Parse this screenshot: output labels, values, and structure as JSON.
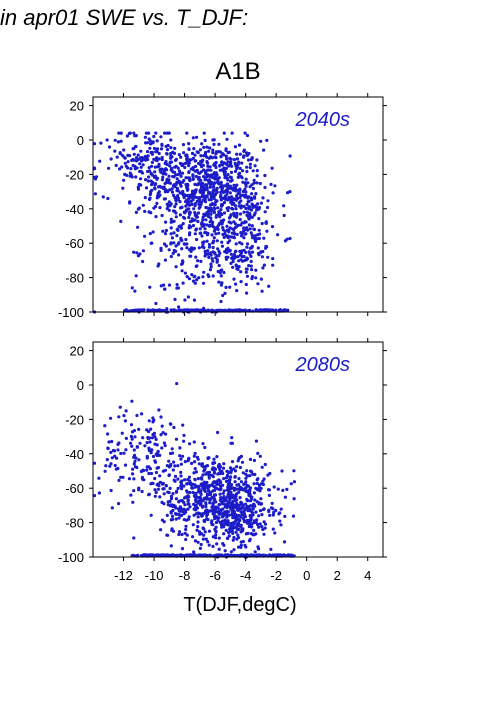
{
  "heading": "in apr01 SWE vs. T_DJF:",
  "scenario": "A1B",
  "xlabel": "T(DJF,degC)",
  "chart_data": [
    {
      "type": "scatter",
      "panel_label": "2040s",
      "color": "#1c1cc8",
      "xlim": [
        -14,
        5
      ],
      "ylim": [
        -100,
        25
      ],
      "xticks": [
        -12,
        -10,
        -8,
        -6,
        -4,
        -2,
        0,
        2,
        4
      ],
      "yticks": [
        20,
        0,
        -20,
        -40,
        -60,
        -80,
        -100
      ],
      "clusters": [
        {
          "cx": -6.5,
          "cy": -28,
          "sx": 1.8,
          "sy": 14,
          "n": 700
        },
        {
          "cx": -10.5,
          "cy": -12,
          "sx": 1.6,
          "sy": 10,
          "n": 200
        },
        {
          "cx": -4.5,
          "cy": -55,
          "sx": 1.4,
          "sy": 16,
          "n": 280
        },
        {
          "cx": -7.5,
          "cy": -65,
          "sx": 2.0,
          "sy": 18,
          "n": 180
        }
      ],
      "floor_band": {
        "y": -99.5,
        "xmin": -12,
        "xmax": -1.2,
        "n": 220
      }
    },
    {
      "type": "scatter",
      "panel_label": "2080s",
      "color": "#1c1cc8",
      "xlim": [
        -14,
        5
      ],
      "ylim": [
        -100,
        25
      ],
      "xticks": [
        -12,
        -10,
        -8,
        -6,
        -4,
        -2,
        0,
        2,
        4
      ],
      "yticks": [
        20,
        0,
        -20,
        -40,
        -60,
        -80,
        -100
      ],
      "clusters": [
        {
          "cx": -6.0,
          "cy": -65,
          "sx": 1.8,
          "sy": 13,
          "n": 650
        },
        {
          "cx": -10.5,
          "cy": -40,
          "sx": 1.5,
          "sy": 14,
          "n": 180
        },
        {
          "cx": -4.5,
          "cy": -78,
          "sx": 1.2,
          "sy": 10,
          "n": 200
        }
      ],
      "floor_band": {
        "y": -99.5,
        "xmin": -11.5,
        "xmax": -0.8,
        "n": 240
      }
    }
  ]
}
